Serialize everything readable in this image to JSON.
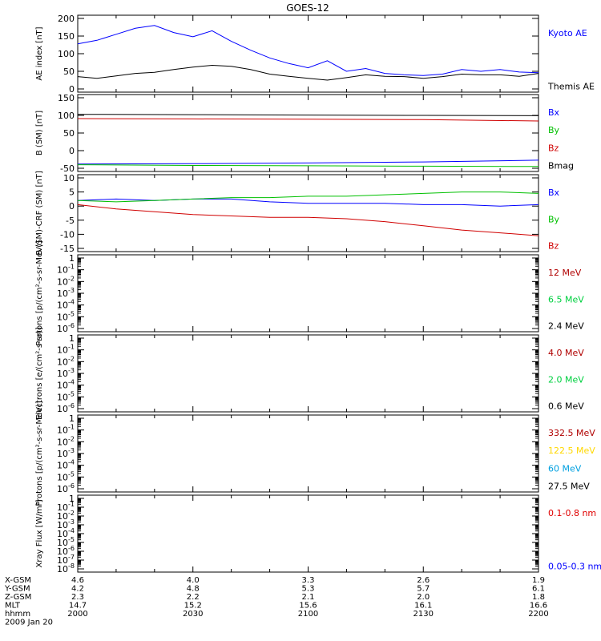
{
  "title": "GOES-12",
  "chart_data": [
    {
      "type": "line",
      "ylabel": "AE index [nT]",
      "ylim": [
        0,
        200
      ],
      "yticks": [
        0,
        50,
        100,
        150,
        200
      ],
      "ylog": false,
      "legend_placement": "right",
      "series": [
        {
          "name": "Kyoto AE",
          "color": "#0000ff",
          "x": [
            0,
            5,
            10,
            15,
            20,
            25,
            30,
            35,
            40,
            45,
            50,
            55,
            60,
            65,
            70,
            75,
            80,
            85,
            90,
            95,
            100,
            105,
            110,
            115,
            120
          ],
          "y": [
            128,
            138,
            155,
            172,
            180,
            160,
            148,
            165,
            135,
            110,
            88,
            72,
            60,
            80,
            50,
            58,
            44,
            40,
            38,
            42,
            55,
            50,
            55,
            48,
            46
          ]
        },
        {
          "name": "Themis AE",
          "color": "#000000",
          "x": [
            0,
            5,
            10,
            15,
            20,
            25,
            30,
            35,
            40,
            45,
            50,
            55,
            60,
            65,
            70,
            75,
            80,
            85,
            90,
            95,
            100,
            105,
            110,
            115,
            120
          ],
          "y": [
            35,
            30,
            37,
            44,
            47,
            55,
            62,
            67,
            64,
            55,
            42,
            36,
            30,
            25,
            32,
            40,
            36,
            35,
            30,
            35,
            42,
            40,
            40,
            36,
            44
          ]
        }
      ]
    },
    {
      "type": "line",
      "ylabel": "B (SM) [nT]",
      "ylim": [
        -50,
        150
      ],
      "yticks": [
        -50,
        0,
        50,
        100,
        150
      ],
      "ylog": false,
      "legend_placement": "right",
      "series": [
        {
          "name": "Bx",
          "color": "#0000ff",
          "x": [
            0,
            30,
            60,
            90,
            120
          ],
          "y": [
            -38,
            -37,
            -35,
            -32,
            -27
          ]
        },
        {
          "name": "By",
          "color": "#00c000",
          "x": [
            0,
            30,
            60,
            90,
            120
          ],
          "y": [
            -40,
            -42,
            -43,
            -44,
            -45
          ]
        },
        {
          "name": "Bz",
          "color": "#d00000",
          "x": [
            0,
            30,
            60,
            90,
            120
          ],
          "y": [
            91,
            90,
            89,
            88,
            84
          ]
        },
        {
          "name": "Bmag",
          "color": "#000000",
          "x": [
            0,
            30,
            60,
            90,
            120
          ],
          "y": [
            103,
            102,
            101,
            100,
            99
          ]
        }
      ]
    },
    {
      "type": "line",
      "ylabel": "B (SM)-CRF (SM) [nT]",
      "ylim": [
        -15,
        10
      ],
      "yticks": [
        -15,
        -10,
        -5,
        0,
        5,
        10
      ],
      "ylog": false,
      "legend_placement": "right",
      "series": [
        {
          "name": "Bx",
          "color": "#0000ff",
          "x": [
            0,
            10,
            20,
            30,
            40,
            50,
            60,
            70,
            80,
            90,
            100,
            110,
            120
          ],
          "y": [
            2,
            2.5,
            2,
            2.5,
            2.5,
            1.5,
            1,
            1,
            1,
            0.5,
            0.5,
            0,
            0.5
          ]
        },
        {
          "name": "By",
          "color": "#00c000",
          "x": [
            0,
            10,
            20,
            30,
            40,
            50,
            60,
            70,
            80,
            90,
            100,
            110,
            120
          ],
          "y": [
            2,
            1.5,
            2,
            2.5,
            3,
            3,
            3.5,
            3.5,
            4,
            4.5,
            5,
            5,
            4.5
          ]
        },
        {
          "name": "Bz",
          "color": "#d00000",
          "x": [
            0,
            10,
            20,
            30,
            40,
            50,
            60,
            70,
            80,
            90,
            100,
            110,
            120
          ],
          "y": [
            0.5,
            -1,
            -2,
            -3,
            -3.5,
            -4,
            -4,
            -4.5,
            -5.5,
            -7,
            -8.5,
            -9.5,
            -10.5
          ]
        }
      ]
    },
    {
      "type": "line",
      "ylabel": "Protons [p/(cm²-s-sr-MeV)]",
      "ylim": [
        1e-06,
        1
      ],
      "yticks": [
        1e-06,
        1e-05,
        0.0001,
        0.001,
        0.01,
        0.1,
        1
      ],
      "ylog": true,
      "legend_placement": "right",
      "series": [
        {
          "name": "12 MeV",
          "color": "#b00000",
          "x": [],
          "y": []
        },
        {
          "name": "6.5 MeV",
          "color": "#00d040",
          "x": [],
          "y": []
        },
        {
          "name": "2.4 MeV",
          "color": "#000000",
          "x": [],
          "y": []
        }
      ]
    },
    {
      "type": "line",
      "ylabel": "Electrons [e/(cm²-s-sr)]",
      "ylim": [
        1e-06,
        1
      ],
      "yticks": [
        1e-06,
        1e-05,
        0.0001,
        0.001,
        0.01,
        0.1,
        1
      ],
      "ylog": true,
      "legend_placement": "right",
      "series": [
        {
          "name": "4.0 MeV",
          "color": "#b00000",
          "x": [],
          "y": []
        },
        {
          "name": "2.0 MeV",
          "color": "#00d040",
          "x": [],
          "y": []
        },
        {
          "name": "0.6 MeV",
          "color": "#000000",
          "x": [],
          "y": []
        }
      ]
    },
    {
      "type": "line",
      "ylabel": "Protons [p/(cm²-s-sr-MeV)]",
      "ylim": [
        1e-06,
        1
      ],
      "yticks": [
        1e-06,
        1e-05,
        0.0001,
        0.001,
        0.01,
        0.1,
        1
      ],
      "ylog": true,
      "legend_placement": "right",
      "series": [
        {
          "name": "332.5 MeV",
          "color": "#b00000",
          "x": [],
          "y": []
        },
        {
          "name": "122.5 MeV",
          "color": "#ffd800",
          "x": [],
          "y": []
        },
        {
          "name": "60 MeV",
          "color": "#00a0e0",
          "x": [],
          "y": []
        },
        {
          "name": "27.5 MeV",
          "color": "#000000",
          "x": [],
          "y": []
        }
      ]
    },
    {
      "type": "line",
      "ylabel": "Xray Flux [W/m²]",
      "ylim": [
        1e-08,
        1
      ],
      "yticks": [
        1e-08,
        1e-07,
        1e-06,
        1e-05,
        0.0001,
        0.001,
        0.01,
        0.1,
        1
      ],
      "ylog": true,
      "legend_placement": "right",
      "series": [
        {
          "name": "0.1-0.8 nm",
          "color": "#e00000",
          "x": [],
          "y": []
        },
        {
          "name": "0.05-0.3 nm",
          "color": "#0000ff",
          "x": [],
          "y": []
        }
      ]
    }
  ],
  "ephemeris": {
    "rows": [
      {
        "label": "X-GSM",
        "values": [
          "4.6",
          "4.0",
          "3.3",
          "2.6",
          "1.9"
        ]
      },
      {
        "label": "Y-GSM",
        "values": [
          "4.2",
          "4.8",
          "5.3",
          "5.7",
          "6.1"
        ]
      },
      {
        "label": "Z-GSM",
        "values": [
          "2.3",
          "2.2",
          "2.1",
          "2.0",
          "1.8"
        ]
      },
      {
        "label": "MLT",
        "values": [
          "14.7",
          "15.2",
          "15.6",
          "16.1",
          "16.6"
        ]
      },
      {
        "label": "hhmm",
        "values": [
          "2000",
          "2030",
          "2100",
          "2130",
          "2200"
        ]
      }
    ],
    "date": "2009 Jan 20"
  }
}
